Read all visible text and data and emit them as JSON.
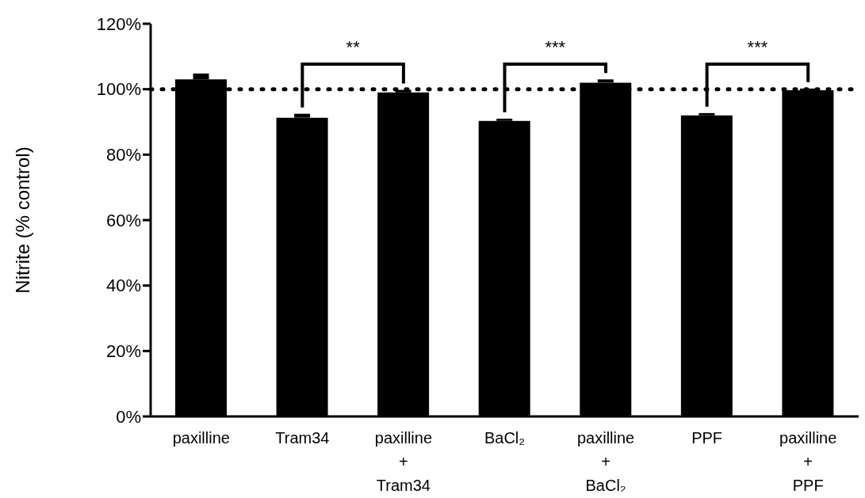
{
  "chart_data": {
    "type": "bar",
    "ylabel": "Nitrite (% control)",
    "categories": [
      "paxilline",
      "Tram34",
      "paxilline\n+\nTram34",
      "BaCl₂",
      "paxilline\n+\nBaCl₂",
      "PPF",
      "paxilline\n+\nPPF"
    ],
    "values": [
      103,
      91.3,
      99,
      90.3,
      102,
      92,
      99.7
    ],
    "errors": [
      [
        103,
        104.8
      ],
      [
        91.3,
        92.5
      ],
      [
        99,
        99.8
      ],
      [
        90.3,
        91
      ],
      [
        102,
        103
      ],
      [
        92,
        92.7
      ],
      [
        99.7,
        100.2
      ]
    ],
    "color": "#000000",
    "ylim": [
      0,
      120
    ],
    "yticks": [
      {
        "value": 0,
        "label": "0%"
      },
      {
        "value": 20,
        "label": "20%"
      },
      {
        "value": 40,
        "label": "40%"
      },
      {
        "value": 60,
        "label": "60%"
      },
      {
        "value": 80,
        "label": "80%"
      },
      {
        "value": 100,
        "label": "100%"
      },
      {
        "value": 120,
        "label": "120%"
      }
    ],
    "ref_lines": [
      {
        "axis": "y",
        "value": 100,
        "line_style": "dotted",
        "color": "#000000"
      }
    ],
    "annotations": [
      "**",
      "***",
      "***"
    ],
    "grid": false
  }
}
